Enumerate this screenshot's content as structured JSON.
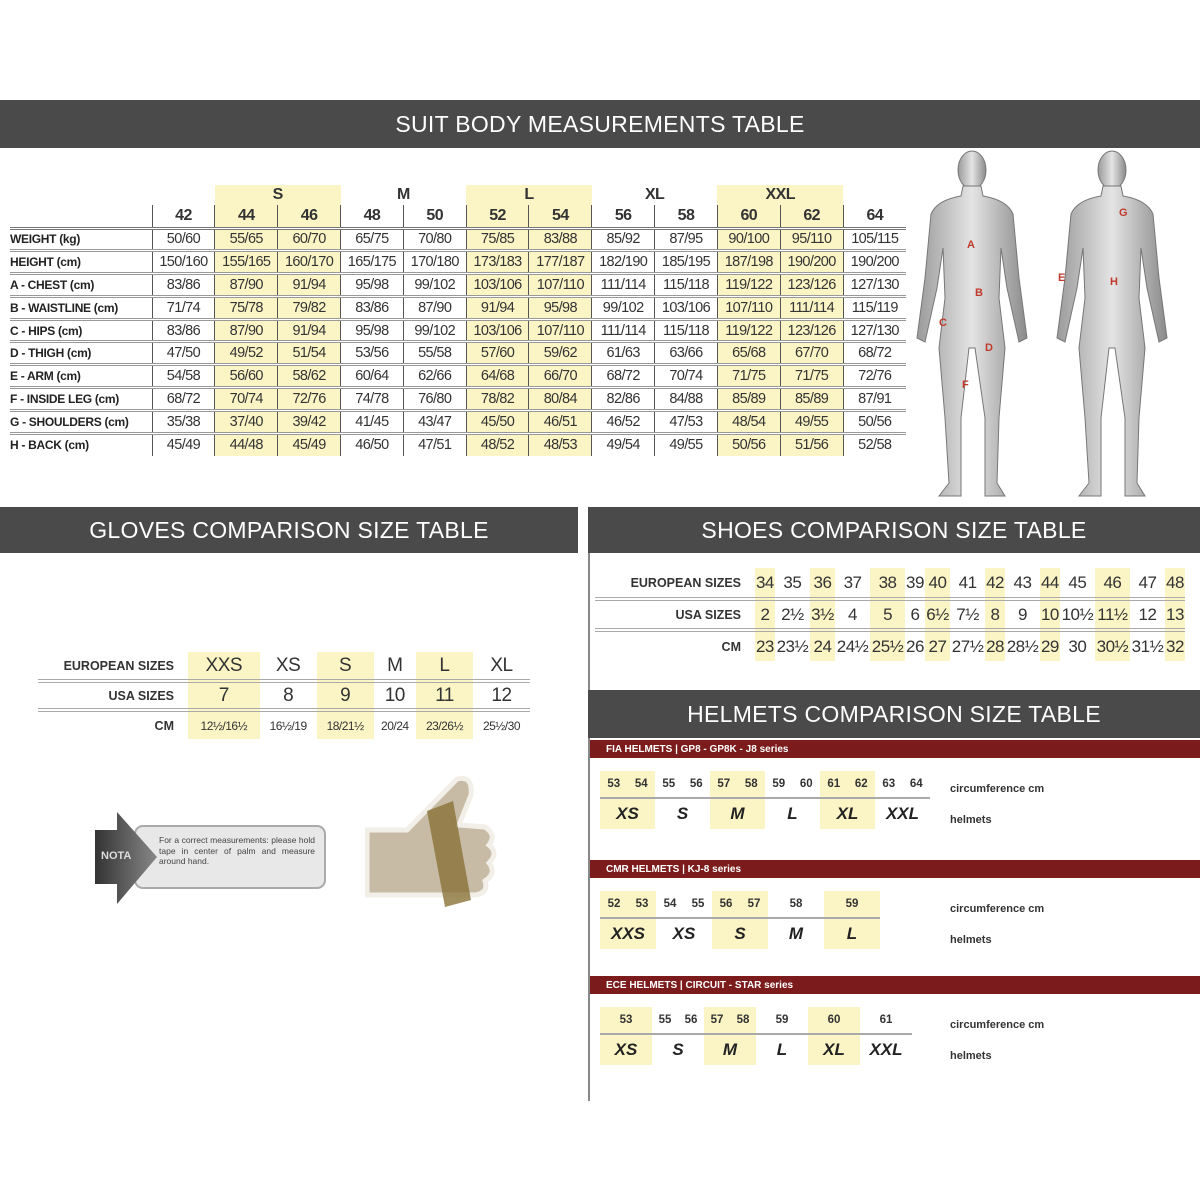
{
  "suit": {
    "title": "SUIT BODY MEASUREMENTS TABLE",
    "groups": [
      {
        "label": "",
        "span": 1,
        "highlight": false
      },
      {
        "label": "S",
        "span": 2,
        "highlight": true
      },
      {
        "label": "M",
        "span": 2,
        "highlight": false
      },
      {
        "label": "L",
        "span": 2,
        "highlight": true
      },
      {
        "label": "XL",
        "span": 2,
        "highlight": false
      },
      {
        "label": "XXL",
        "span": 2,
        "highlight": true
      },
      {
        "label": "",
        "span": 1,
        "highlight": false
      }
    ],
    "sizes": [
      "42",
      "44",
      "46",
      "48",
      "50",
      "52",
      "54",
      "56",
      "58",
      "60",
      "62",
      "64"
    ],
    "highlight_columns": [
      "44",
      "46",
      "52",
      "54",
      "60",
      "62"
    ],
    "rows": [
      {
        "label": "WEIGHT (kg)",
        "values": [
          "50/60",
          "55/65",
          "60/70",
          "65/75",
          "70/80",
          "75/85",
          "83/88",
          "85/92",
          "87/95",
          "90/100",
          "95/110",
          "105/115"
        ]
      },
      {
        "label": "HEIGHT (cm)",
        "values": [
          "150/160",
          "155/165",
          "160/170",
          "165/175",
          "170/180",
          "173/183",
          "177/187",
          "182/190",
          "185/195",
          "187/198",
          "190/200",
          "190/200"
        ]
      },
      {
        "label": "A - CHEST (cm)",
        "values": [
          "83/86",
          "87/90",
          "91/94",
          "95/98",
          "99/102",
          "103/106",
          "107/110",
          "111/114",
          "115/118",
          "119/122",
          "123/126",
          "127/130"
        ]
      },
      {
        "label": "B - WAISTLINE (cm)",
        "values": [
          "71/74",
          "75/78",
          "79/82",
          "83/86",
          "87/90",
          "91/94",
          "95/98",
          "99/102",
          "103/106",
          "107/110",
          "111/114",
          "115/119"
        ]
      },
      {
        "label": "C - HIPS (cm)",
        "values": [
          "83/86",
          "87/90",
          "91/94",
          "95/98",
          "99/102",
          "103/106",
          "107/110",
          "111/114",
          "115/118",
          "119/122",
          "123/126",
          "127/130"
        ]
      },
      {
        "label": "D - THIGH (cm)",
        "values": [
          "47/50",
          "49/52",
          "51/54",
          "53/56",
          "55/58",
          "57/60",
          "59/62",
          "61/63",
          "63/66",
          "65/68",
          "67/70",
          "68/72"
        ]
      },
      {
        "label": "E - ARM (cm)",
        "values": [
          "54/58",
          "56/60",
          "58/62",
          "60/64",
          "62/66",
          "64/68",
          "66/70",
          "68/72",
          "70/74",
          "71/75",
          "71/75",
          "72/76"
        ]
      },
      {
        "label": "F - INSIDE LEG (cm)",
        "values": [
          "68/72",
          "70/74",
          "72/76",
          "74/78",
          "76/80",
          "78/82",
          "80/84",
          "82/86",
          "84/88",
          "85/89",
          "85/89",
          "87/91"
        ]
      },
      {
        "label": "G - SHOULDERS (cm)",
        "values": [
          "35/38",
          "37/40",
          "39/42",
          "41/45",
          "43/47",
          "45/50",
          "46/51",
          "46/52",
          "47/53",
          "48/54",
          "49/55",
          "50/56"
        ]
      },
      {
        "label": "H - BACK (cm)",
        "values": [
          "45/49",
          "44/48",
          "45/49",
          "46/50",
          "47/51",
          "48/52",
          "48/53",
          "49/54",
          "49/55",
          "50/56",
          "51/56",
          "52/58"
        ]
      }
    ],
    "figure_labels": [
      "A",
      "B",
      "C",
      "D",
      "E",
      "F",
      "G",
      "H"
    ]
  },
  "gloves": {
    "title": "GLOVES COMPARISON SIZE TABLE",
    "rows": [
      {
        "label": "EUROPEAN SIZES",
        "values": [
          "XXS",
          "XS",
          "S",
          "M",
          "L",
          "XL"
        ]
      },
      {
        "label": "USA SIZES",
        "values": [
          "7",
          "8",
          "9",
          "10",
          "11",
          "12"
        ]
      },
      {
        "label": "CM",
        "values": [
          "12½/16½",
          "16½/19",
          "18/21½",
          "20/24",
          "23/26½",
          "25½/30"
        ]
      }
    ],
    "highlight_index": [
      0,
      2,
      4
    ],
    "nota_label": "NOTA",
    "nota_text": "For a correct measurements: please hold tape in center of palm and measure around hand."
  },
  "shoes": {
    "title": "SHOES COMPARISON SIZE TABLE",
    "rows": [
      {
        "label": "EUROPEAN SIZES",
        "values": [
          "34",
          "35",
          "36",
          "37",
          "38",
          "39",
          "40",
          "41",
          "42",
          "43",
          "44",
          "45",
          "46",
          "47",
          "48"
        ]
      },
      {
        "label": "USA SIZES",
        "values": [
          "2",
          "2½",
          "3½",
          "4",
          "5",
          "6",
          "6½",
          "7½",
          "8",
          "9",
          "10",
          "10½",
          "11½",
          "12",
          "13"
        ]
      },
      {
        "label": "CM",
        "values": [
          "23",
          "23½",
          "24",
          "24½",
          "25½",
          "26",
          "27",
          "27½",
          "28",
          "28½",
          "29",
          "30",
          "30½",
          "31½",
          "32"
        ]
      }
    ],
    "highlight_index": [
      0,
      2,
      4,
      6,
      8,
      10,
      12,
      14
    ]
  },
  "helmets": {
    "title": "HELMETS COMPARISON SIZE TABLE",
    "circ_label": "circumference cm",
    "size_label": "helmets",
    "tables": [
      {
        "title": "FIA HELMETS | GP8 - GP8K - J8 series",
        "groups": [
          {
            "size": "XS",
            "circ": [
              "53",
              "54"
            ],
            "highlight": true
          },
          {
            "size": "S",
            "circ": [
              "55",
              "56"
            ],
            "highlight": false
          },
          {
            "size": "M",
            "circ": [
              "57",
              "58"
            ],
            "highlight": true
          },
          {
            "size": "L",
            "circ": [
              "59",
              "60"
            ],
            "highlight": false
          },
          {
            "size": "XL",
            "circ": [
              "61",
              "62"
            ],
            "highlight": true
          },
          {
            "size": "XXL",
            "circ": [
              "63",
              "64"
            ],
            "highlight": false
          }
        ]
      },
      {
        "title": "CMR HELMETS | KJ-8 series",
        "groups": [
          {
            "size": "XXS",
            "circ": [
              "52",
              "53"
            ],
            "highlight": true
          },
          {
            "size": "XS",
            "circ": [
              "54",
              "55"
            ],
            "highlight": false
          },
          {
            "size": "S",
            "circ": [
              "56",
              "57"
            ],
            "highlight": true
          },
          {
            "size": "M",
            "circ": [
              "58"
            ],
            "highlight": false
          },
          {
            "size": "L",
            "circ": [
              "59"
            ],
            "highlight": true
          }
        ]
      },
      {
        "title": "ECE HELMETS | CIRCUIT - STAR series",
        "groups": [
          {
            "size": "XS",
            "circ": [
              "53"
            ],
            "highlight": true
          },
          {
            "size": "S",
            "circ": [
              "55",
              "56"
            ],
            "highlight": false
          },
          {
            "size": "M",
            "circ": [
              "57",
              "58"
            ],
            "highlight": true
          },
          {
            "size": "L",
            "circ": [
              "59"
            ],
            "highlight": false
          },
          {
            "size": "XL",
            "circ": [
              "60"
            ],
            "highlight": true
          },
          {
            "size": "XXL",
            "circ": [
              "61"
            ],
            "highlight": false
          }
        ]
      }
    ]
  },
  "colors": {
    "header_band": "#4a4a4a",
    "highlight": "#fbf5c6",
    "helmet_bar": "#7b1b1b",
    "figure_label": "#c0392b"
  }
}
